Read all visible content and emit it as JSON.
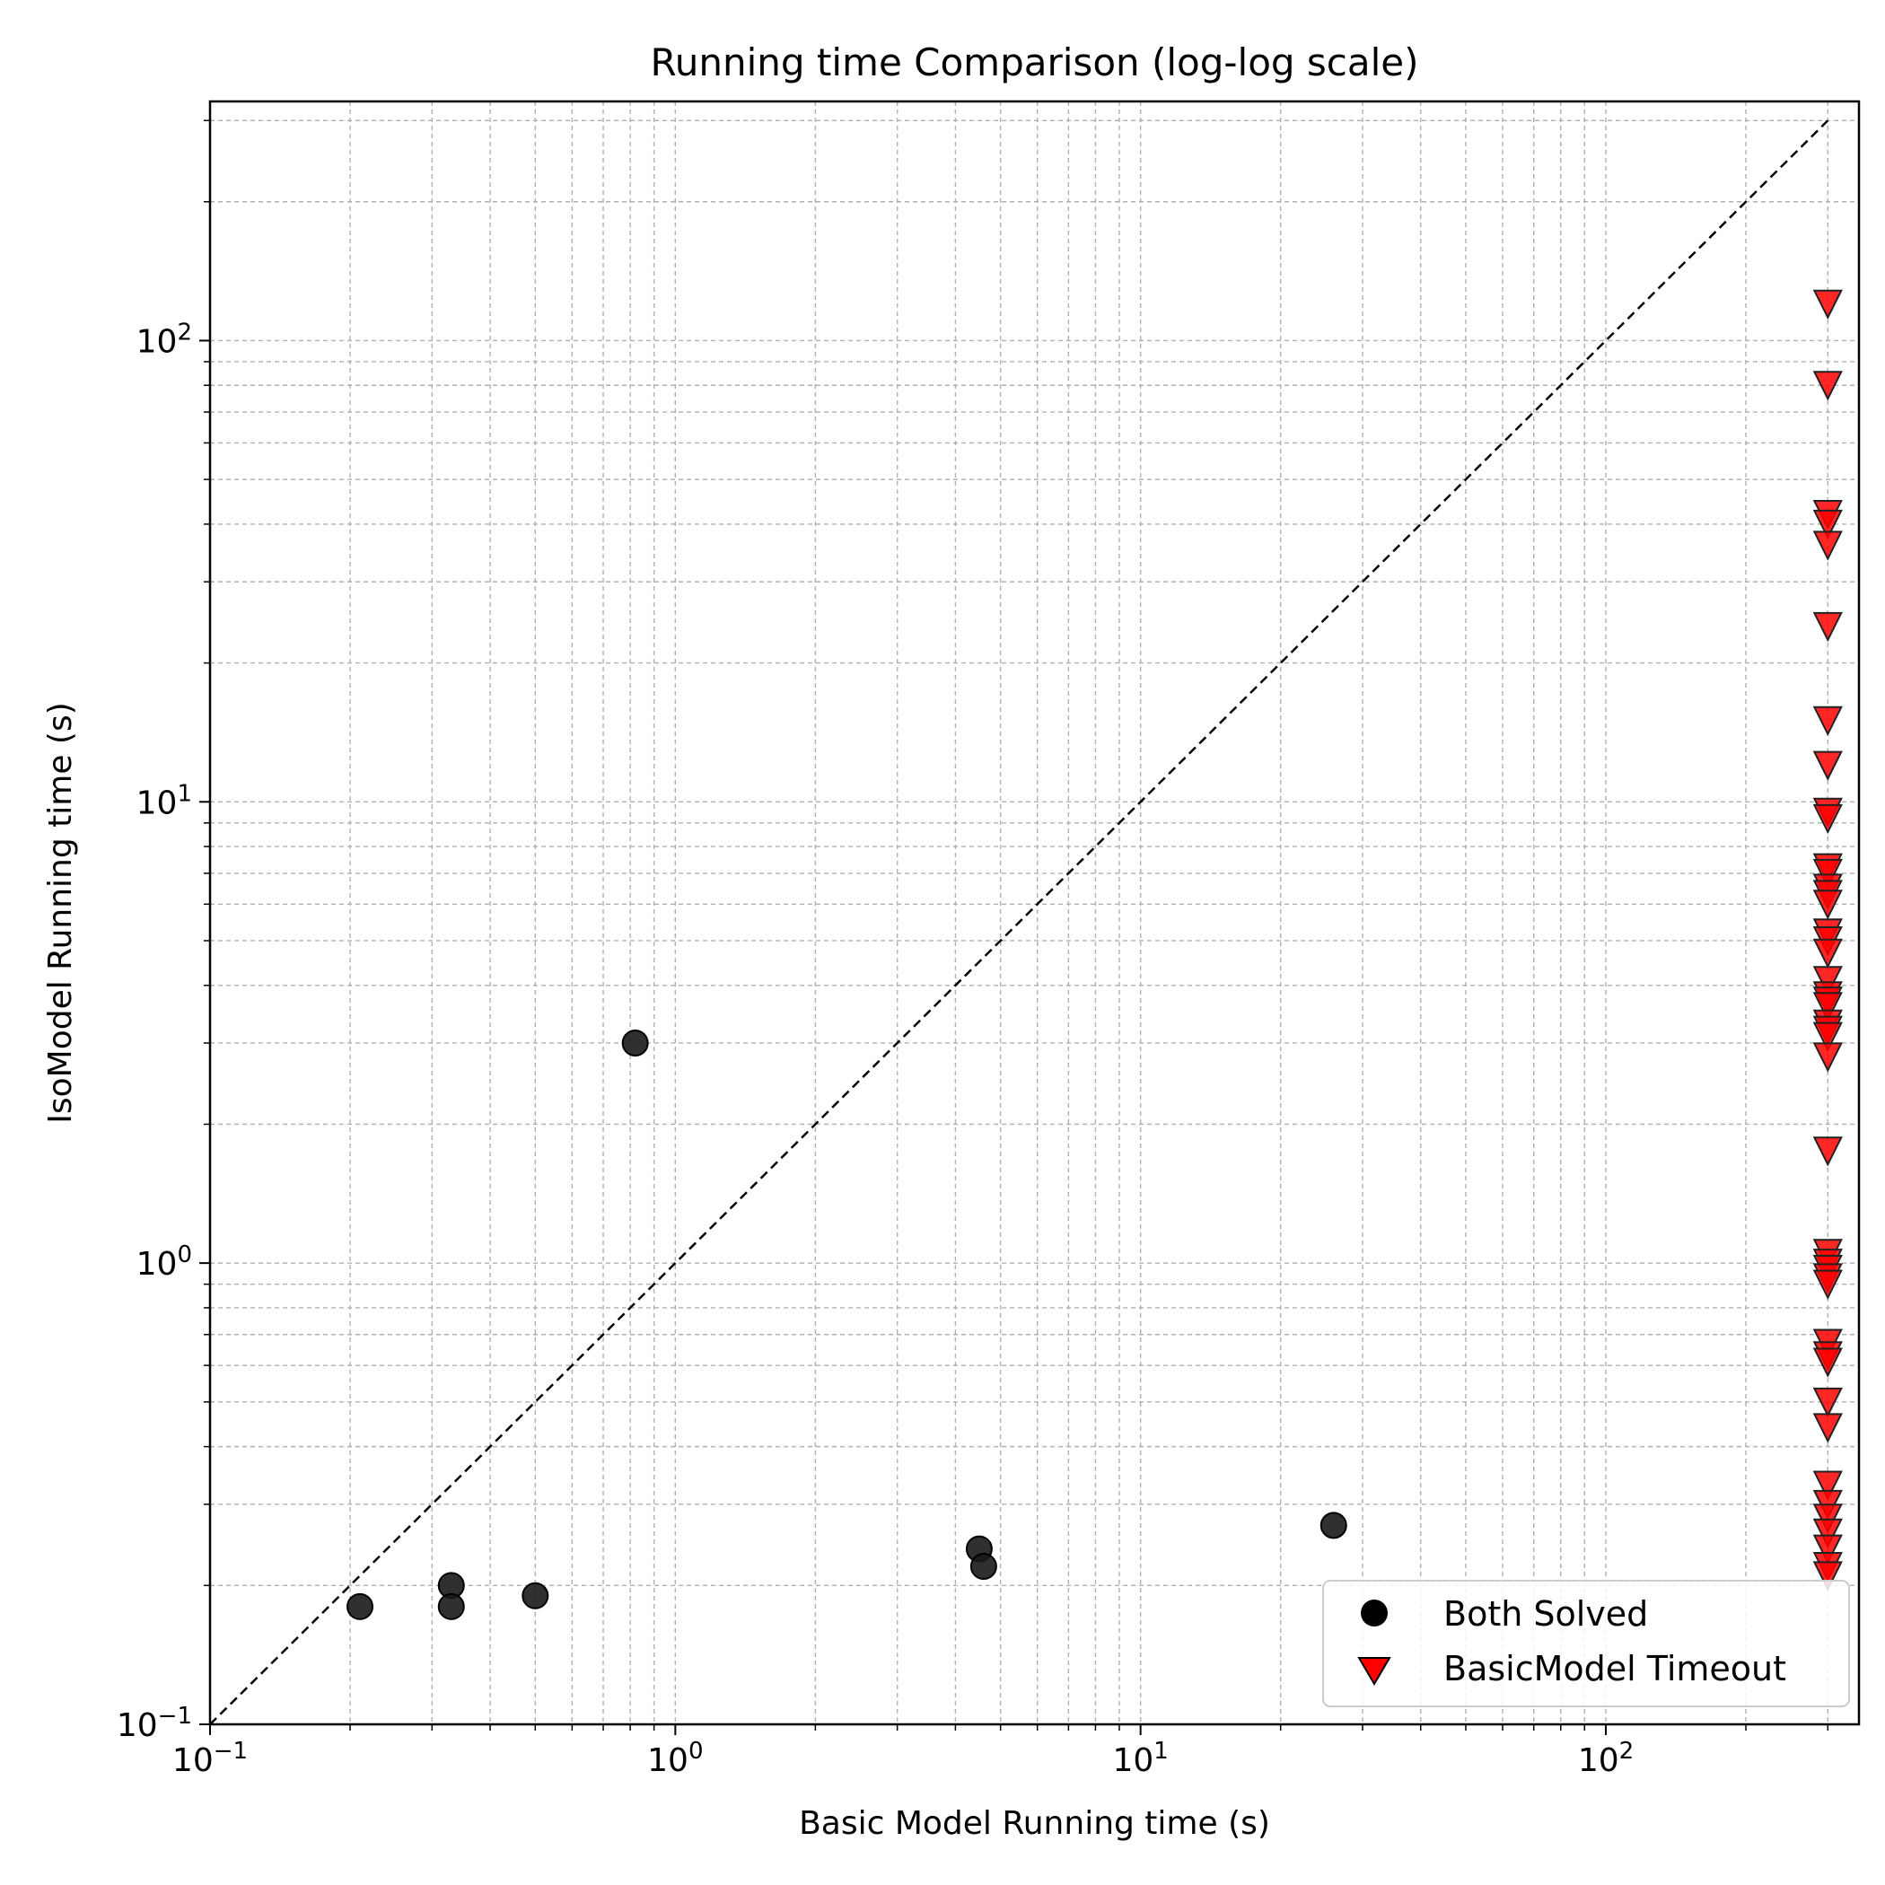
{
  "chart_data": {
    "type": "scatter",
    "title": "Running time Comparison (log-log scale)",
    "xlabel": "Basic Model Running time (s)",
    "ylabel": "IsoModel Running time (s)",
    "xscale": "log",
    "yscale": "log",
    "xlim": [
      0.1,
      350
    ],
    "ylim": [
      0.1,
      330
    ],
    "grid": true,
    "legend_position": "lower-right",
    "x_ticks": [
      {
        "value": 0.1,
        "base": "10",
        "exp": "−1"
      },
      {
        "value": 1,
        "base": "10",
        "exp": "0"
      },
      {
        "value": 10,
        "base": "10",
        "exp": "1"
      },
      {
        "value": 100,
        "base": "10",
        "exp": "2"
      }
    ],
    "y_ticks": [
      {
        "value": 0.1,
        "base": "10",
        "exp": "−1"
      },
      {
        "value": 1,
        "base": "10",
        "exp": "0"
      },
      {
        "value": 10,
        "base": "10",
        "exp": "1"
      },
      {
        "value": 100,
        "base": "10",
        "exp": "2"
      }
    ],
    "reference_line": {
      "style": "dashed",
      "color": "#000000",
      "from": [
        0.1,
        0.1
      ],
      "to": [
        300,
        300
      ]
    },
    "series": [
      {
        "name": "Both Solved",
        "marker": "circle",
        "color": "#1a1a1a",
        "points": [
          [
            0.21,
            0.18
          ],
          [
            0.33,
            0.2
          ],
          [
            0.33,
            0.18
          ],
          [
            0.5,
            0.19
          ],
          [
            0.82,
            3.0
          ],
          [
            4.5,
            0.24
          ],
          [
            4.6,
            0.22
          ],
          [
            26,
            0.27
          ]
        ]
      },
      {
        "name": "BasicModel Timeout",
        "marker": "triangle-down",
        "color": "#ff0000",
        "points": [
          [
            300,
            120
          ],
          [
            300,
            80
          ],
          [
            300,
            42
          ],
          [
            300,
            40
          ],
          [
            300,
            36
          ],
          [
            300,
            24
          ],
          [
            300,
            15
          ],
          [
            300,
            12
          ],
          [
            300,
            9.5
          ],
          [
            300,
            9.2
          ],
          [
            300,
            7.2
          ],
          [
            300,
            7.0
          ],
          [
            300,
            6.5
          ],
          [
            300,
            6.3
          ],
          [
            300,
            6.0
          ],
          [
            300,
            5.2
          ],
          [
            300,
            5.0
          ],
          [
            300,
            4.7
          ],
          [
            300,
            4.1
          ],
          [
            300,
            3.8
          ],
          [
            300,
            3.7
          ],
          [
            300,
            3.6
          ],
          [
            300,
            3.3
          ],
          [
            300,
            3.2
          ],
          [
            300,
            3.1
          ],
          [
            300,
            2.8
          ],
          [
            300,
            1.75
          ],
          [
            300,
            1.05
          ],
          [
            300,
            1.0
          ],
          [
            300,
            0.97
          ],
          [
            300,
            0.93
          ],
          [
            300,
            0.9
          ],
          [
            300,
            0.67
          ],
          [
            300,
            0.63
          ],
          [
            300,
            0.61
          ],
          [
            300,
            0.5
          ],
          [
            300,
            0.44
          ],
          [
            300,
            0.33
          ],
          [
            300,
            0.3
          ],
          [
            300,
            0.28
          ],
          [
            300,
            0.26
          ],
          [
            300,
            0.24
          ],
          [
            300,
            0.22
          ],
          [
            300,
            0.21
          ]
        ]
      }
    ]
  }
}
